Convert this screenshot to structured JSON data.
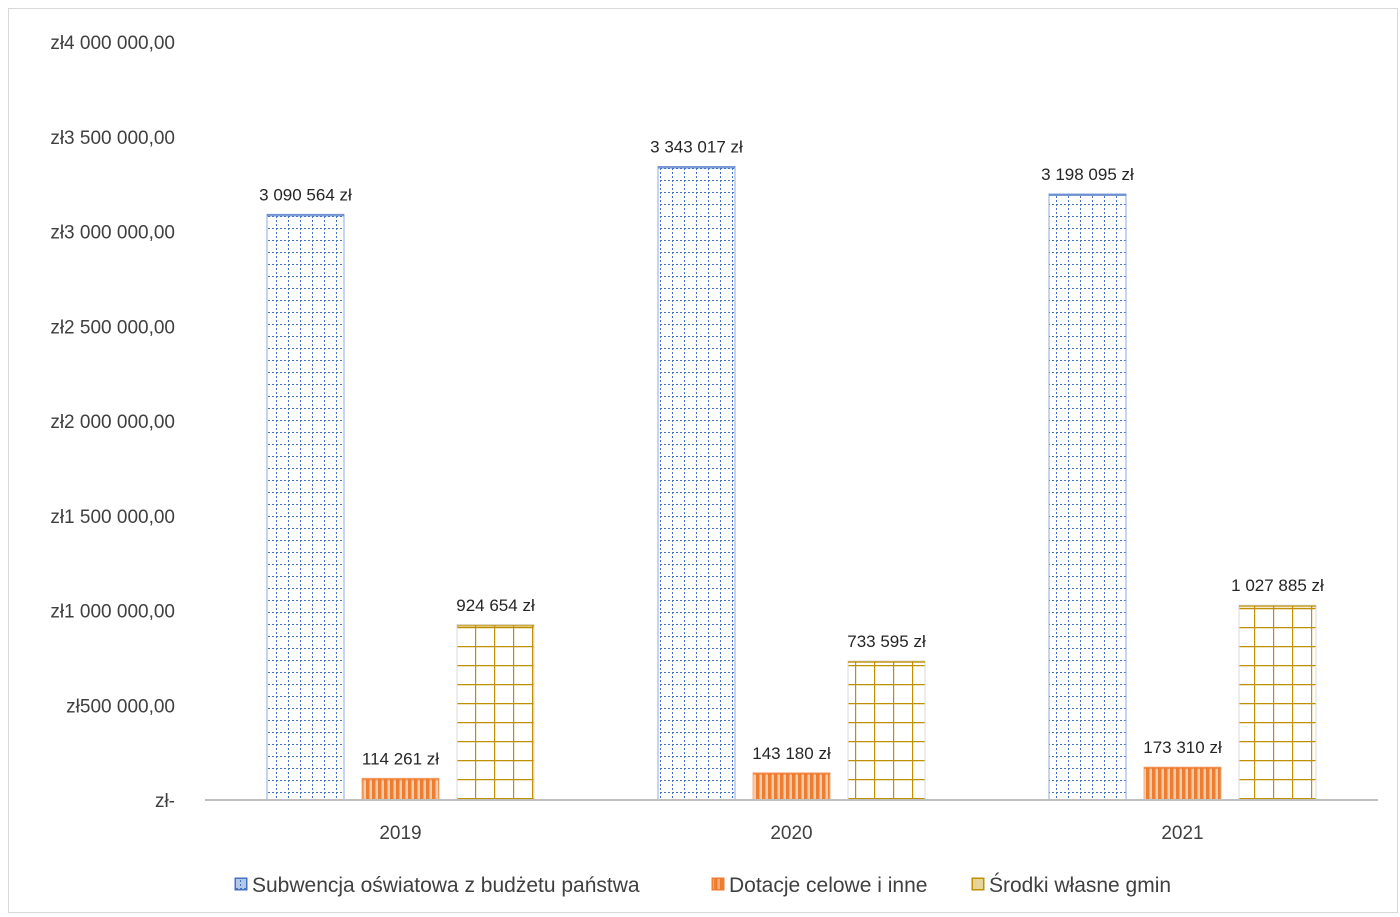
{
  "chart_data": {
    "type": "bar",
    "categories": [
      "2019",
      "2020",
      "2021"
    ],
    "series": [
      {
        "name": "Subwencja oświatowa z budżetu państwa",
        "values": [
          3090564,
          3343017,
          3198095
        ],
        "labels": [
          "3 090 564 zł",
          "3 343 017 zł",
          "3 198 095 zł"
        ],
        "color": "#4472c4",
        "pattern": "dotted-grid"
      },
      {
        "name": "Dotacje celowe i inne",
        "values": [
          114261,
          143180,
          173310
        ],
        "labels": [
          "114 261 zł",
          "143 180 zł",
          "173 310 zł"
        ],
        "color": "#ed7d31",
        "pattern": "vertical-stripes"
      },
      {
        "name": "Środki własne gmin",
        "values": [
          924654,
          733595,
          1027885
        ],
        "labels": [
          "924 654 zł",
          "733 595 zł",
          "1 027 885 zł"
        ],
        "color": "#bf9000",
        "pattern": "grid"
      }
    ],
    "ylim": [
      0,
      4000000
    ],
    "yticks": [
      {
        "value": 0,
        "label": "zł-"
      },
      {
        "value": 500000,
        "label": "zł500 000,00"
      },
      {
        "value": 1000000,
        "label": "zł1 000 000,00"
      },
      {
        "value": 1500000,
        "label": "zł1 500 000,00"
      },
      {
        "value": 2000000,
        "label": "zł2 000 000,00"
      },
      {
        "value": 2500000,
        "label": "zł2 500 000,00"
      },
      {
        "value": 3000000,
        "label": "zł3 000 000,00"
      },
      {
        "value": 3500000,
        "label": "zł3 500 000,00"
      },
      {
        "value": 4000000,
        "label": "zł4 000 000,00"
      }
    ],
    "grid": false,
    "legend_position": "bottom"
  }
}
